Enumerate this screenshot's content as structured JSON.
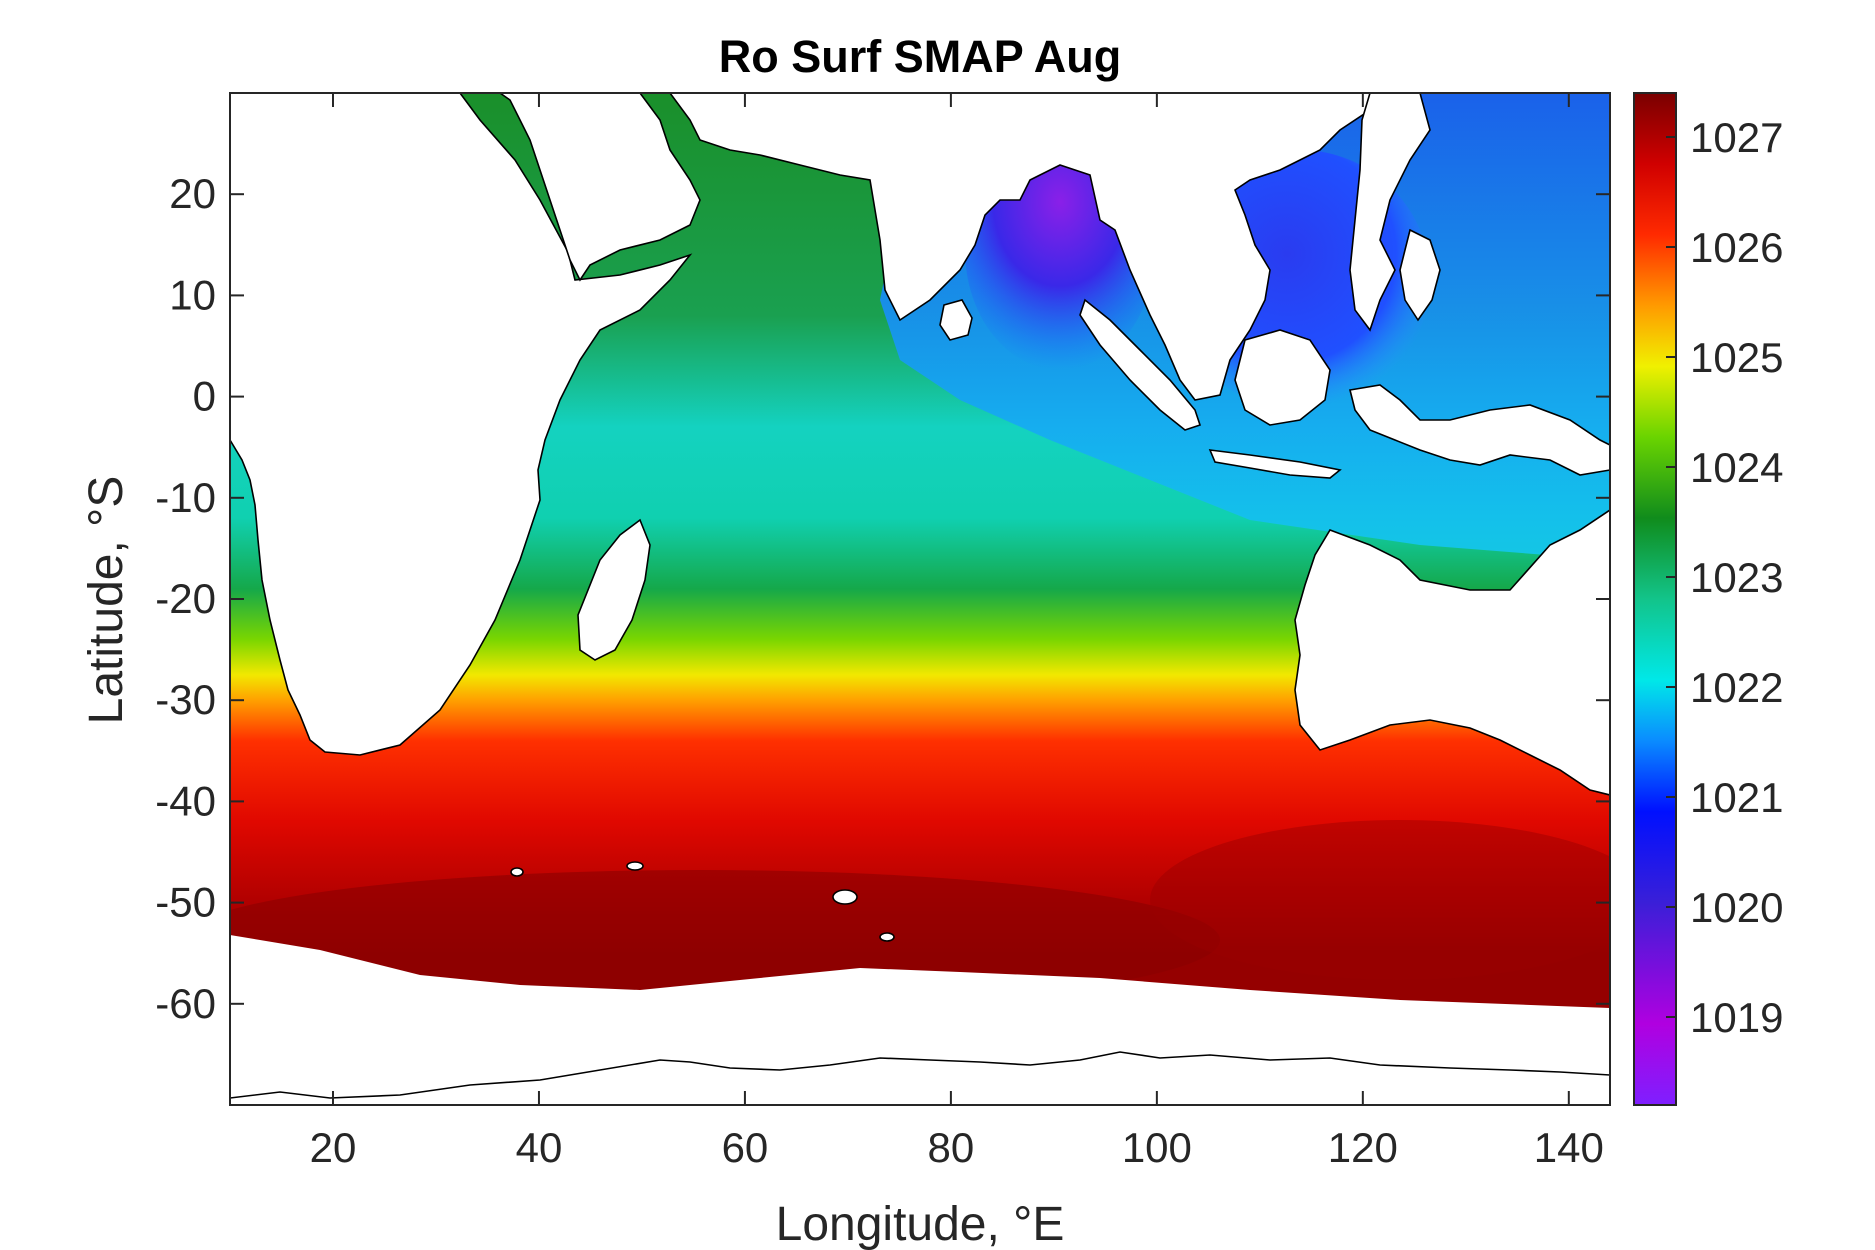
{
  "chart_data": {
    "type": "heatmap",
    "title": "Ro Surf SMAP Aug",
    "xlabel": "Longitude, °E",
    "ylabel": "Latitude, °S",
    "xlim": [
      10,
      144
    ],
    "ylim": [
      -70,
      30
    ],
    "xticks": [
      20,
      40,
      60,
      80,
      100,
      120,
      140
    ],
    "yticks": [
      20,
      10,
      0,
      -10,
      -20,
      -30,
      -40,
      -50,
      -60
    ],
    "colorbar": {
      "range": [
        1018.2,
        1027.4
      ],
      "ticks": [
        1019,
        1020,
        1021,
        1022,
        1023,
        1024,
        1025,
        1026,
        1027
      ],
      "colormap": [
        "#7f1fff",
        "#b000e0",
        "#3a1fd8",
        "#0010ff",
        "#0a8cff",
        "#00e8e8",
        "#12c48a",
        "#108c1c",
        "#6ad400",
        "#f0f000",
        "#ff9a00",
        "#ff2a00",
        "#d00000",
        "#7a0000"
      ]
    },
    "grid": false,
    "legend": "colorbar-right"
  }
}
